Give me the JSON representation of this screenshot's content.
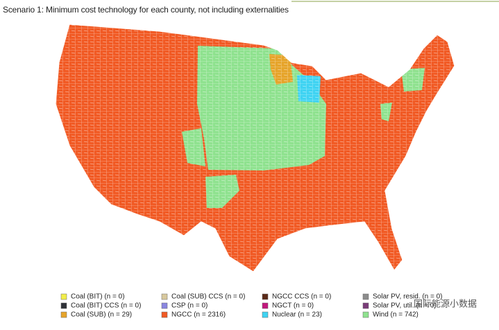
{
  "title": "Scenario 1: Minimum cost technology for each county, not including externalities",
  "legend": [
    {
      "label": "Coal (BIT) (n = 0)",
      "color": "#f2ee4a"
    },
    {
      "label": "Coal (BIT) CCS (n = 0)",
      "color": "#2f3238"
    },
    {
      "label": "Coal (SUB) (n = 29)",
      "color": "#e6a42a"
    },
    {
      "label": "Coal (SUB) CCS (n = 0)",
      "color": "#d8c99e"
    },
    {
      "label": "CSP (n = 0)",
      "color": "#8a86e0"
    },
    {
      "label": "NGCC (n = 2316)",
      "color": "#f15a24"
    },
    {
      "label": "NGCC CCS (n = 0)",
      "color": "#5b2a18"
    },
    {
      "label": "NGCT (n = 0)",
      "color": "#c2177c"
    },
    {
      "label": "Nuclear (n = 23)",
      "color": "#3fd3f2"
    },
    {
      "label": "Solar PV, resid. (n = 0)",
      "color": "#8c8c8c"
    },
    {
      "label": "Solar PV, util. (n = 0)",
      "color": "#7a3c78"
    },
    {
      "label": "Wind (n = 742)",
      "color": "#8fe28f"
    }
  ],
  "watermark": "国际能源小数据"
}
